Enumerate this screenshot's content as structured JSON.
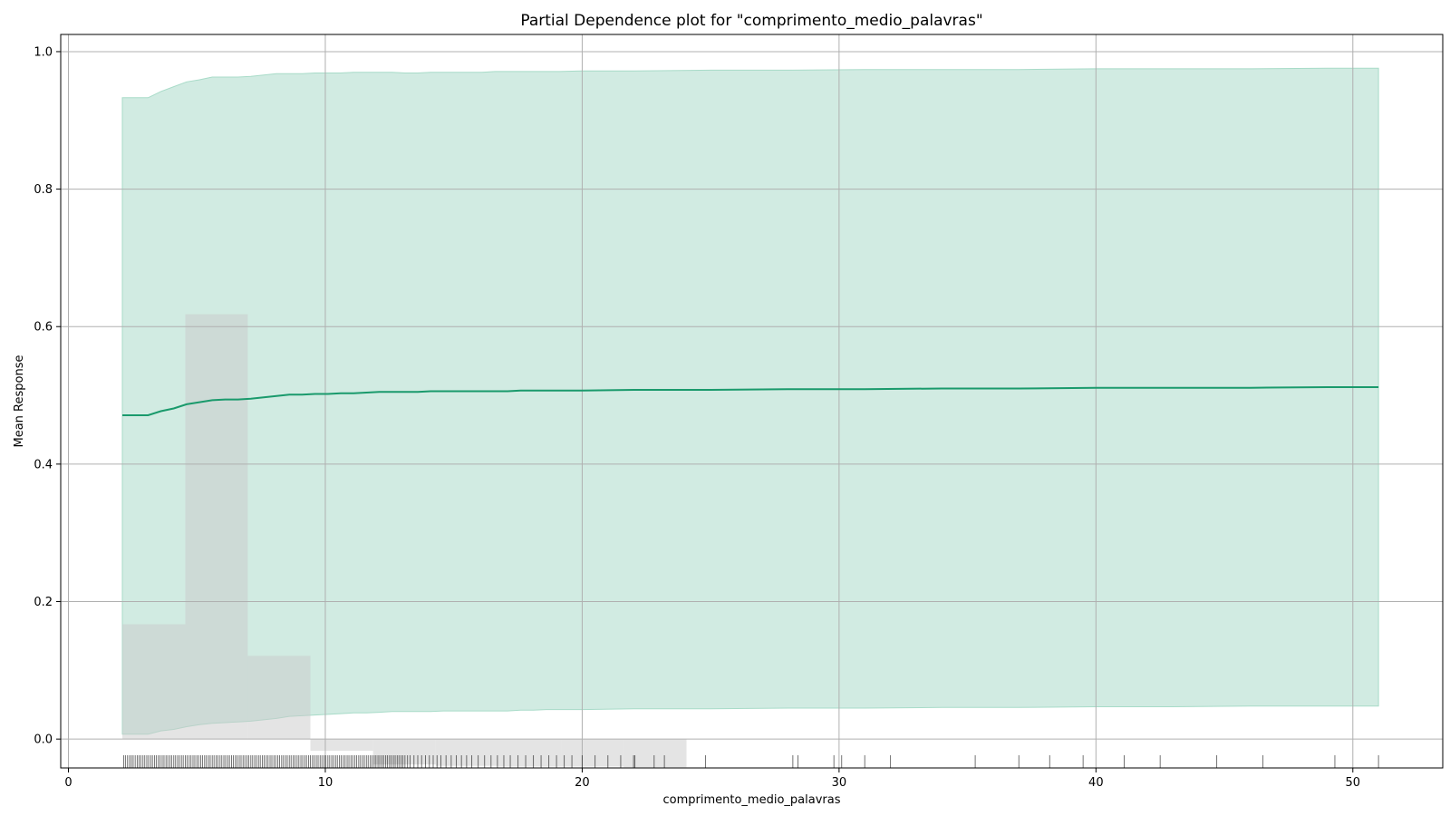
{
  "chart_data": {
    "type": "line",
    "title": "Partial Dependence plot for \"comprimento_medio_palavras\"",
    "xlabel": "comprimento_medio_palavras",
    "ylabel": "Mean Response",
    "xlim": [
      -0.3,
      53.5
    ],
    "ylim": [
      -0.042,
      1.025
    ],
    "xticks": [
      0,
      10,
      20,
      30,
      40,
      50
    ],
    "yticks": [
      0.0,
      0.2,
      0.4,
      0.6,
      0.8,
      1.0
    ],
    "xtick_labels": [
      "0",
      "10",
      "20",
      "30",
      "40",
      "50"
    ],
    "ytick_labels": [
      "0.0",
      "0.2",
      "0.4",
      "0.6",
      "0.8",
      "1.0"
    ],
    "grid": true,
    "colors": {
      "line": "#1a9a6c",
      "band": "#d1ebe2",
      "band_edge": "#a8dbc8",
      "hist": "#c9c9c9",
      "rug": "#000000"
    },
    "series": [
      {
        "x": [
          2.1,
          3.1,
          3.6,
          4.1,
          4.6,
          5.1,
          5.6,
          6.1,
          6.6,
          7.1,
          7.6,
          8.1,
          8.6,
          9.1,
          9.6,
          10.1,
          10.6,
          11.1,
          11.6,
          12.1,
          12.6,
          13.1,
          13.6,
          14.1,
          14.6,
          15.1,
          15.6,
          16.1,
          16.6,
          17.1,
          17.6,
          18.1,
          18.6,
          19.1,
          20,
          22,
          25,
          28,
          31,
          34,
          37,
          40,
          43,
          46,
          49,
          51
        ],
        "values": [
          0.471,
          0.471,
          0.477,
          0.481,
          0.487,
          0.49,
          0.493,
          0.494,
          0.494,
          0.495,
          0.497,
          0.499,
          0.501,
          0.501,
          0.502,
          0.502,
          0.503,
          0.503,
          0.504,
          0.505,
          0.505,
          0.505,
          0.505,
          0.506,
          0.506,
          0.506,
          0.506,
          0.506,
          0.506,
          0.506,
          0.507,
          0.507,
          0.507,
          0.507,
          0.507,
          0.508,
          0.508,
          0.509,
          0.509,
          0.51,
          0.51,
          0.511,
          0.511,
          0.511,
          0.512,
          0.512
        ],
        "upper": [
          0.933,
          0.933,
          0.942,
          0.949,
          0.956,
          0.959,
          0.963,
          0.963,
          0.963,
          0.964,
          0.966,
          0.968,
          0.968,
          0.968,
          0.969,
          0.969,
          0.969,
          0.97,
          0.97,
          0.97,
          0.97,
          0.969,
          0.969,
          0.97,
          0.97,
          0.97,
          0.97,
          0.97,
          0.971,
          0.971,
          0.971,
          0.971,
          0.971,
          0.971,
          0.972,
          0.972,
          0.973,
          0.973,
          0.974,
          0.974,
          0.974,
          0.975,
          0.975,
          0.975,
          0.976,
          0.976
        ],
        "lower": [
          0.007,
          0.007,
          0.012,
          0.014,
          0.018,
          0.021,
          0.023,
          0.024,
          0.025,
          0.026,
          0.028,
          0.03,
          0.033,
          0.034,
          0.035,
          0.036,
          0.037,
          0.038,
          0.038,
          0.039,
          0.04,
          0.04,
          0.04,
          0.04,
          0.041,
          0.041,
          0.041,
          0.041,
          0.041,
          0.041,
          0.042,
          0.042,
          0.043,
          0.043,
          0.043,
          0.044,
          0.044,
          0.045,
          0.045,
          0.046,
          0.046,
          0.047,
          0.047,
          0.048,
          0.048,
          0.048
        ]
      }
    ],
    "histogram": {
      "bin_edges": [
        2.1,
        4.55,
        6.98,
        9.42,
        11.86,
        14.3,
        16.74,
        19.18,
        21.62,
        24.06
      ],
      "heights": [
        0.167,
        0.618,
        0.121,
        -0.017,
        -0.037,
        -0.039,
        -0.04,
        -0.04,
        -0.041
      ]
    },
    "rug": [
      2.15,
      2.22,
      2.3,
      2.38,
      2.45,
      2.52,
      2.6,
      2.68,
      2.75,
      2.82,
      2.9,
      2.97,
      3.05,
      3.12,
      3.2,
      3.27,
      3.35,
      3.42,
      3.5,
      3.57,
      3.65,
      3.72,
      3.8,
      3.87,
      3.95,
      4.02,
      4.1,
      4.17,
      4.25,
      4.32,
      4.4,
      4.47,
      4.55,
      4.62,
      4.7,
      4.77,
      4.85,
      4.92,
      5.0,
      5.07,
      5.15,
      5.22,
      5.3,
      5.37,
      5.45,
      5.52,
      5.6,
      5.67,
      5.75,
      5.82,
      5.9,
      5.97,
      6.05,
      6.12,
      6.2,
      6.27,
      6.35,
      6.42,
      6.5,
      6.57,
      6.65,
      6.72,
      6.8,
      6.87,
      6.95,
      7.02,
      7.1,
      7.17,
      7.25,
      7.32,
      7.4,
      7.47,
      7.55,
      7.62,
      7.7,
      7.77,
      7.85,
      7.92,
      8.0,
      8.07,
      8.15,
      8.22,
      8.3,
      8.37,
      8.45,
      8.52,
      8.6,
      8.67,
      8.75,
      8.82,
      8.9,
      8.97,
      9.05,
      9.12,
      9.2,
      9.27,
      9.35,
      9.42,
      9.5,
      9.57,
      9.65,
      9.72,
      9.8,
      9.87,
      9.95,
      10.02,
      10.1,
      10.17,
      10.25,
      10.32,
      10.4,
      10.47,
      10.55,
      10.62,
      10.7,
      10.77,
      10.85,
      10.92,
      11.0,
      11.07,
      11.15,
      11.22,
      11.3,
      11.37,
      11.45,
      11.52,
      11.6,
      11.67,
      11.75,
      11.82,
      11.9,
      11.97,
      12.05,
      12.12,
      12.2,
      12.27,
      12.35,
      12.42,
      12.5,
      12.57,
      12.65,
      12.72,
      12.8,
      12.87,
      12.95,
      13.02,
      13.1,
      13.2,
      13.3,
      13.45,
      13.6,
      13.75,
      13.9,
      14.05,
      14.2,
      14.35,
      14.5,
      14.7,
      14.9,
      15.1,
      15.3,
      15.5,
      15.7,
      15.95,
      16.2,
      16.45,
      16.7,
      16.95,
      17.2,
      17.5,
      17.8,
      18.1,
      18.4,
      18.7,
      19.0,
      19.3,
      19.6,
      20.0,
      20.5,
      21.0,
      21.5,
      22.0,
      22.05,
      22.8,
      23.2,
      24.8,
      28.2,
      28.4,
      29.8,
      30.1,
      31.0,
      32.0,
      35.3,
      37.0,
      38.2,
      39.5,
      41.1,
      42.5,
      44.7,
      46.5,
      49.3,
      51.0
    ]
  }
}
